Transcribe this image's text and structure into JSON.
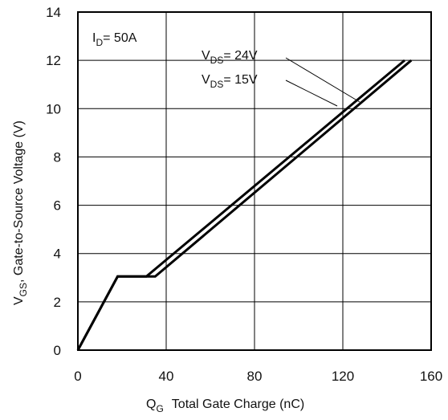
{
  "chart_data": {
    "type": "line",
    "title": "",
    "xlabel": {
      "main": "Q",
      "sub": "G",
      "rest": "Total Gate Charge (nC)"
    },
    "ylabel": {
      "main": "V",
      "sub": "GS",
      "rest": ", Gate-to-Source Voltage (V)"
    },
    "xlim": [
      0,
      160
    ],
    "ylim": [
      0,
      14
    ],
    "x_ticks": [
      0,
      40,
      80,
      120,
      160
    ],
    "y_ticks": [
      0,
      2,
      4,
      6,
      8,
      10,
      12,
      14
    ],
    "grid": true,
    "condition": {
      "main": "I",
      "sub": "D",
      "rest": "= 50A"
    },
    "series": [
      {
        "name": "VDS= 24V",
        "label": {
          "main": "V",
          "sub": "DS",
          "rest": "= 24V"
        },
        "x": [
          0,
          18,
          31,
          148
        ],
        "y": [
          0,
          3.05,
          3.05,
          12
        ]
      },
      {
        "name": "VDS= 15V",
        "label": {
          "main": "V",
          "sub": "DS",
          "rest": "= 15V"
        },
        "x": [
          0,
          18,
          35,
          151
        ],
        "y": [
          0,
          3.05,
          3.05,
          12
        ]
      }
    ]
  }
}
